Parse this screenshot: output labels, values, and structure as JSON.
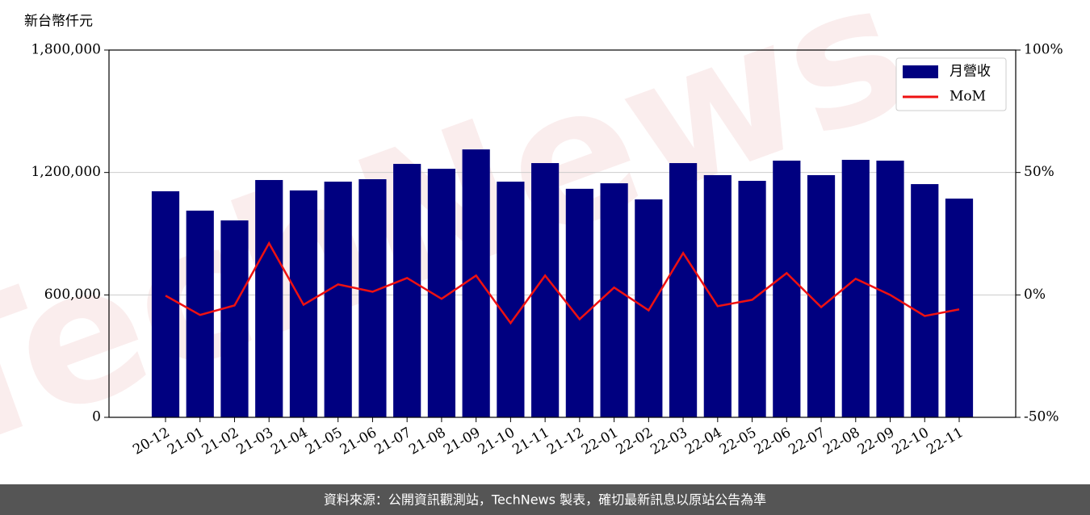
{
  "chart_data": {
    "type": "bar_line",
    "y_label": "新台幣仟元",
    "watermark": "TechNews",
    "footer": "資料來源：公開資訊觀測站，TechNews 製表，確切最新訊息以原站公告為準",
    "categories": [
      "20-12",
      "21-01",
      "21-02",
      "21-03",
      "21-04",
      "21-05",
      "21-06",
      "21-07",
      "21-08",
      "21-09",
      "21-10",
      "21-11",
      "21-12",
      "22-01",
      "22-02",
      "22-03",
      "22-04",
      "22-05",
      "22-06",
      "22-07",
      "22-08",
      "22-09",
      "22-10",
      "22-11"
    ],
    "series": [
      {
        "name": "月營收",
        "color": "#000080",
        "values": [
          1108000,
          1013000,
          965000,
          1163000,
          1112000,
          1155000,
          1167000,
          1242000,
          1218000,
          1313000,
          1155000,
          1246000,
          1120000,
          1147000,
          1068000,
          1246000,
          1187000,
          1159000,
          1258000,
          1187000,
          1262000,
          1258000,
          1143000,
          1072000
        ]
      },
      {
        "name": "MoM",
        "color": "#ee1111",
        "axis": "y2",
        "values": [
          -0.3,
          -8.2,
          -4.3,
          21.1,
          -4.0,
          4.3,
          1.3,
          6.9,
          -1.6,
          7.9,
          -11.5,
          7.9,
          -9.9,
          3.0,
          -6.3,
          17.1,
          -4.6,
          -2.0,
          8.9,
          -5.0,
          6.6,
          0,
          -8.6,
          -5.9
        ]
      }
    ],
    "ylim": [
      0,
      1800000
    ],
    "yticks": [
      0,
      {
        "value": 600000,
        "label": "600,000"
      },
      {
        "value": 1200000,
        "label": "1,200,000"
      },
      {
        "value": 1800000,
        "label": "1,800,000"
      }
    ],
    "y2lim": [
      -50,
      100
    ],
    "y2ticks": [
      {
        "value": -50,
        "label": "-50%"
      },
      {
        "value": 0,
        "label": "0%"
      },
      {
        "value": 50,
        "label": "50%"
      },
      {
        "value": 100,
        "label": "100%"
      }
    ],
    "grid": true,
    "legend": "upper right"
  }
}
